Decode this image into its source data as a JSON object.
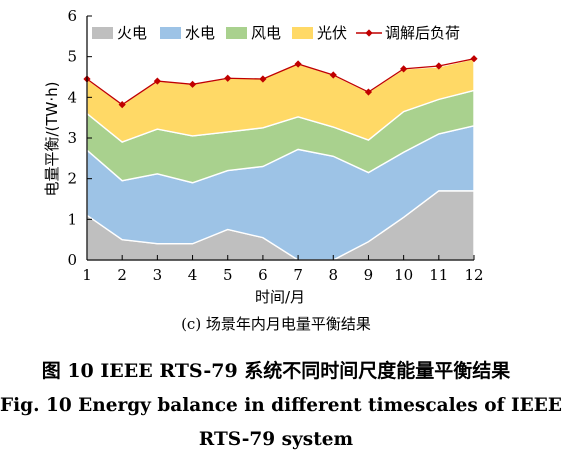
{
  "chart_data": {
    "type": "area",
    "stacked": true,
    "x": [
      1,
      2,
      3,
      4,
      5,
      6,
      7,
      8,
      9,
      10,
      11,
      12
    ],
    "xlabel": "时间/月",
    "ylabel": "电量平衡/(TW·h)",
    "xlim": [
      1,
      12
    ],
    "ylim": [
      0,
      6
    ],
    "yticks": [
      0,
      1,
      2,
      3,
      4,
      5,
      6
    ],
    "grid": false,
    "legend_position": "top",
    "series": [
      {
        "name": "火电",
        "type": "area",
        "color": "#bfbfbf",
        "values": [
          1.1,
          0.5,
          0.4,
          0.4,
          0.75,
          0.55,
          0.0,
          0.0,
          0.45,
          1.05,
          1.7,
          1.7
        ]
      },
      {
        "name": "水电",
        "type": "area",
        "color": "#9dc3e6",
        "values": [
          1.6,
          1.45,
          1.72,
          1.5,
          1.45,
          1.75,
          2.72,
          2.55,
          1.7,
          1.6,
          1.4,
          1.6
        ]
      },
      {
        "name": "风电",
        "type": "area",
        "color": "#a9d18e",
        "values": [
          0.9,
          0.95,
          1.1,
          1.15,
          0.95,
          0.95,
          0.8,
          0.72,
          0.8,
          1.0,
          0.85,
          0.87
        ]
      },
      {
        "name": "光伏",
        "type": "area",
        "color": "#ffd966",
        "values": [
          0.85,
          0.92,
          1.18,
          1.27,
          1.32,
          1.22,
          1.3,
          1.28,
          1.18,
          1.05,
          0.8,
          0.78
        ]
      },
      {
        "name": "调解后负荷",
        "type": "line",
        "color": "#c00000",
        "values": [
          4.45,
          3.82,
          4.4,
          4.32,
          4.47,
          4.45,
          4.82,
          4.55,
          4.13,
          4.7,
          4.77,
          4.95
        ]
      }
    ]
  },
  "captions": {
    "sub": "(c)  场景年内月电量平衡结果",
    "cn": "图 10    IEEE RTS-79 系统不同时间尺度能量平衡结果",
    "en_line1": "Fig. 10    Energy balance in different timescales of IEEE",
    "en_line2": "RTS-79 system"
  }
}
